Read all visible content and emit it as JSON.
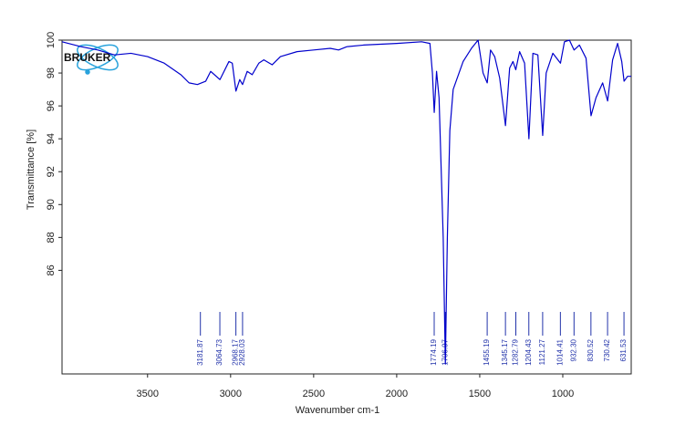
{
  "chart_data": {
    "type": "line",
    "logo": "BRUKER",
    "xlabel": "Wavenumber cm-1",
    "ylabel": "Transmittance [%]",
    "color": "#0000cc",
    "xlim": [
      4015,
      588
    ],
    "ylim": [
      79.7,
      100
    ],
    "xticks": [
      3500,
      3000,
      2500,
      2000,
      1500,
      1000
    ],
    "yticks": [
      86,
      88,
      90,
      92,
      94,
      96,
      98,
      100
    ],
    "x": [
      4015,
      3900,
      3800,
      3700,
      3600,
      3500,
      3400,
      3300,
      3250,
      3200,
      3150,
      3120,
      3064,
      3010,
      2990,
      2968,
      2945,
      2928,
      2900,
      2870,
      2830,
      2800,
      2750,
      2700,
      2600,
      2500,
      2400,
      2350,
      2300,
      2200,
      2000,
      1850,
      1800,
      1785,
      1774,
      1760,
      1745,
      1720,
      1707,
      1695,
      1680,
      1660,
      1600,
      1550,
      1510,
      1480,
      1455,
      1435,
      1410,
      1380,
      1345,
      1320,
      1300,
      1283,
      1260,
      1230,
      1204,
      1180,
      1150,
      1121,
      1100,
      1060,
      1014,
      990,
      960,
      932,
      900,
      860,
      830,
      800,
      760,
      730,
      700,
      670,
      645,
      631,
      610,
      588
    ],
    "values": [
      99.9,
      99.6,
      99.4,
      99.1,
      99.2,
      99.0,
      98.6,
      97.9,
      97.4,
      97.3,
      97.5,
      98.1,
      97.6,
      98.7,
      98.6,
      96.9,
      97.6,
      97.3,
      98.1,
      97.9,
      98.6,
      98.8,
      98.5,
      99.0,
      99.3,
      99.4,
      99.5,
      99.4,
      99.6,
      99.7,
      99.8,
      99.9,
      99.8,
      98.0,
      95.6,
      98.1,
      96.5,
      88,
      80.3,
      88,
      94.5,
      97.0,
      98.7,
      99.5,
      100.0,
      98.0,
      97.4,
      99.4,
      99.0,
      97.7,
      94.8,
      98.3,
      98.7,
      98.2,
      99.3,
      98.6,
      94.0,
      99.2,
      99.1,
      94.2,
      98.0,
      99.2,
      98.6,
      99.9,
      100.0,
      99.4,
      99.7,
      98.9,
      95.4,
      96.5,
      97.4,
      96.3,
      98.8,
      99.8,
      98.7,
      97.5,
      97.8,
      97.8
    ],
    "peaks": {
      "values": [
        3181.87,
        3064.73,
        2968.17,
        2928.03,
        1774.19,
        1706.97,
        1455.19,
        1345.17,
        1282.79,
        1204.43,
        1121.27,
        1014.41,
        932.3,
        830.52,
        730.42,
        631.53
      ],
      "value_labels": [
        "3181.87",
        "3064.73",
        "2968.17",
        "2928.03",
        "1774.19",
        "1706.97",
        "1455.19",
        "1345.17",
        "1282.79",
        "1204.43",
        "1121.27",
        "1014.41",
        "932.30",
        "830.52",
        "730.42",
        "631.53"
      ]
    }
  }
}
